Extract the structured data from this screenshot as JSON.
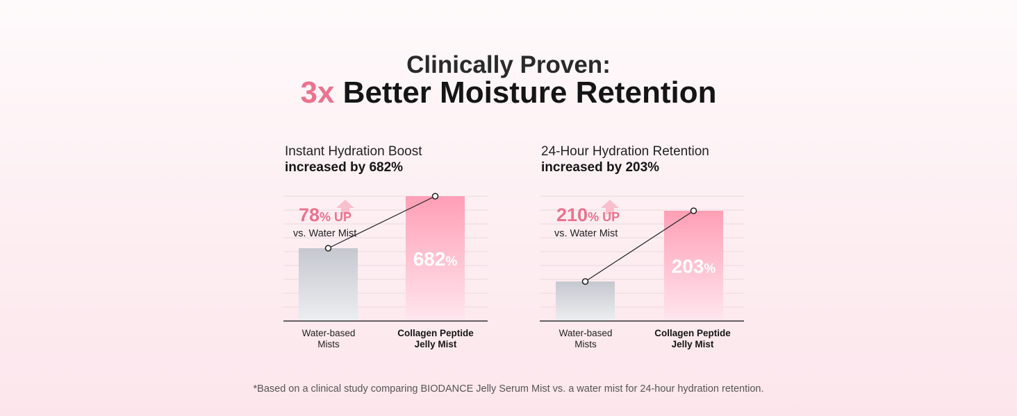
{
  "title": {
    "line1": "Clinically Proven:",
    "accent": "3x",
    "rest": " Better Moisture Retention"
  },
  "colors": {
    "accent": "#e9738f",
    "bar_pink_top": "#ff9fb6",
    "bar_pink_bottom": "#ffe6ee",
    "bar_gray_top": "#c5c8cf",
    "bar_gray_bottom": "#eceef1"
  },
  "chart_data": [
    {
      "type": "bar",
      "title": "Instant Hydration Boost",
      "subtitle": "increased by 682%",
      "categories": [
        "Water-based Mists",
        "Collagen Peptide Jelly Mist"
      ],
      "category_lines": [
        [
          "Water-based",
          "Mists"
        ],
        [
          "Collagen Peptide",
          "Jelly Mist"
        ]
      ],
      "values": [
        78,
        682
      ],
      "bar_labels": [
        "",
        "682%"
      ],
      "highlight_value": "78",
      "highlight_unit": "% UP",
      "highlight_caption": "vs. Water Mist",
      "ylim": [
        0,
        682
      ],
      "grid": true
    },
    {
      "type": "bar",
      "title": "24-Hour Hydration Retention",
      "subtitle": "increased by 203%",
      "categories": [
        "Water-based Mists",
        "Collagen Peptide Jelly Mist"
      ],
      "category_lines": [
        [
          "Water-based",
          "Mists"
        ],
        [
          "Collagen Peptide",
          "Jelly Mist"
        ]
      ],
      "values": [
        210,
        203
      ],
      "bar_labels": [
        "",
        "203%"
      ],
      "highlight_value": "210",
      "highlight_unit": "% UP",
      "highlight_caption": "vs. Water Mist",
      "grid": true
    }
  ],
  "footnote": "*Based on a clinical study comparing BIODANCE Jelly Serum Mist vs. a water mist for 24-hour hydration retention."
}
